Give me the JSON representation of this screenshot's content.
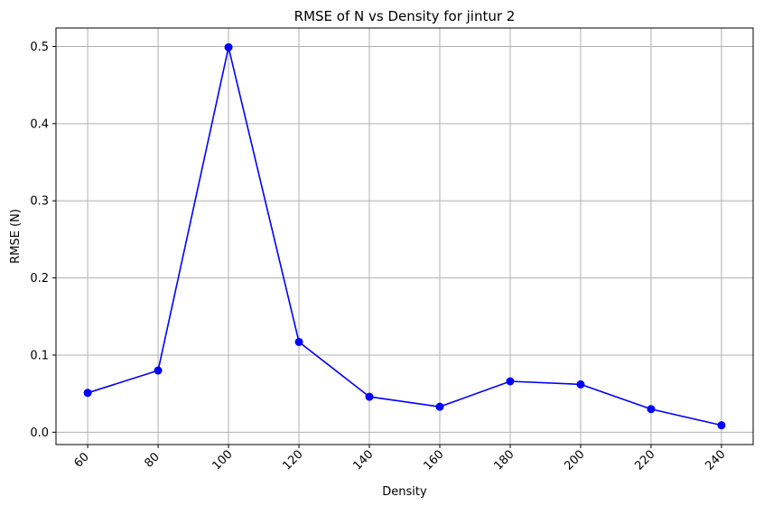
{
  "chart_data": {
    "type": "line",
    "title": "RMSE of N vs Density for jintur 2",
    "xlabel": "Density",
    "ylabel": "RMSE (N)",
    "x": [
      60,
      80,
      100,
      120,
      140,
      160,
      180,
      200,
      220,
      240
    ],
    "series": [
      {
        "values": [
          0.051,
          0.08,
          0.499,
          0.117,
          0.046,
          0.033,
          0.066,
          0.062,
          0.03,
          0.009
        ],
        "color": "#0000ff",
        "marker": "circle"
      }
    ],
    "xticks": [
      60,
      80,
      100,
      120,
      140,
      160,
      180,
      200,
      220,
      240
    ],
    "xtick_labels": [
      "60",
      "80",
      "100",
      "120",
      "140",
      "160",
      "180",
      "200",
      "220",
      "240"
    ],
    "xtick_rotation": 45,
    "yticks": [
      0.0,
      0.1,
      0.2,
      0.3,
      0.4,
      0.5
    ],
    "ytick_labels": [
      "0.0",
      "0.1",
      "0.2",
      "0.3",
      "0.4",
      "0.5"
    ],
    "xlim": [
      51,
      249
    ],
    "ylim": [
      -0.016,
      0.524
    ],
    "grid": true
  }
}
